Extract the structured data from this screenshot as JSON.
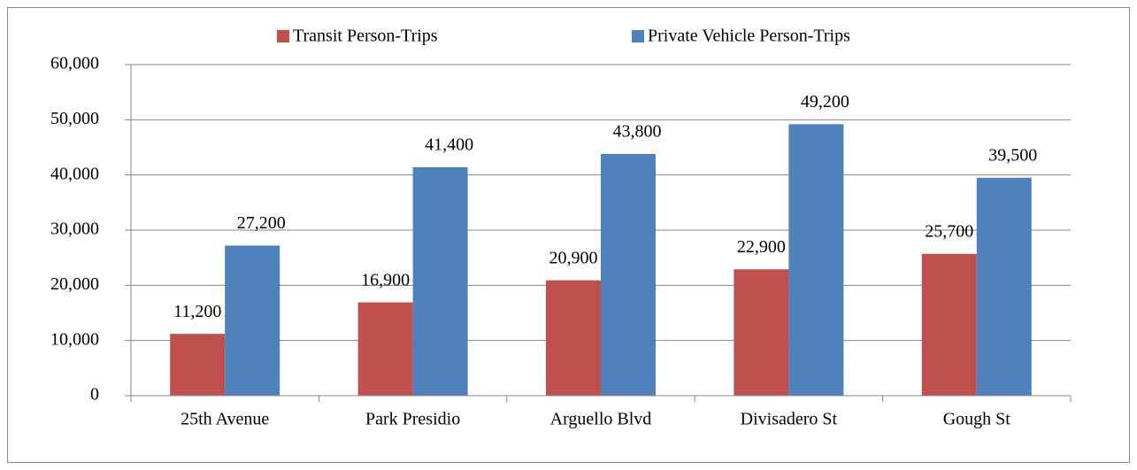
{
  "chart_data": {
    "type": "bar",
    "categories": [
      "25th Avenue",
      "Park Presidio",
      "Arguello Blvd",
      "Divisadero St",
      "Gough St"
    ],
    "series": [
      {
        "name": "Transit Person-Trips",
        "color": "#c0504d",
        "values": [
          11200,
          16900,
          20900,
          22900,
          25700
        ],
        "value_labels": [
          "11,200",
          "16,900",
          "20,900",
          "22,900",
          "25,700"
        ]
      },
      {
        "name": "Private Vehicle Person-Trips",
        "color": "#4f81bd",
        "values": [
          27200,
          41400,
          43800,
          49200,
          39500
        ],
        "value_labels": [
          "27,200",
          "41,400",
          "43,800",
          "49,200",
          "39,500"
        ]
      }
    ],
    "ylim": [
      0,
      60000
    ],
    "yticks": [
      0,
      {
        "value": 10000,
        "label": "10,000"
      },
      {
        "value": 20000,
        "label": "20,000"
      },
      {
        "value": 30000,
        "label": "30,000"
      },
      {
        "value": 40000,
        "label": "40,000"
      },
      {
        "value": 50000,
        "label": "50,000"
      },
      {
        "value": 60000,
        "label": "60,000"
      }
    ],
    "grid": true,
    "legend": "top"
  }
}
